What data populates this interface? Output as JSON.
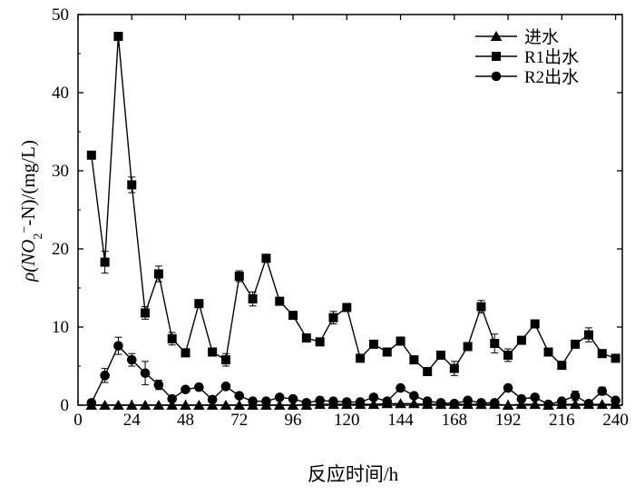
{
  "chart_data": {
    "type": "line",
    "xlabel": "反应时间/h",
    "ylabel_parts": {
      "prefix": "ρ(NO",
      "sub": "2",
      "sup": "−",
      "suffix": "-N)/(mg/L)"
    },
    "xlim": [
      0,
      243
    ],
    "ylim": [
      0,
      50
    ],
    "xticks": [
      0,
      24,
      48,
      72,
      96,
      120,
      144,
      168,
      192,
      216,
      240
    ],
    "yticks": [
      0,
      10,
      20,
      30,
      40,
      50
    ],
    "legend_position": "top-right",
    "grid": false,
    "series": [
      {
        "name": "进水",
        "marker": "triangle",
        "points": [
          [
            6,
            0
          ],
          [
            12,
            0
          ],
          [
            18,
            0
          ],
          [
            24,
            0
          ],
          [
            30,
            0
          ],
          [
            36,
            0
          ],
          [
            42,
            0
          ],
          [
            48,
            0
          ],
          [
            54,
            0
          ],
          [
            60,
            0
          ],
          [
            66,
            0
          ],
          [
            72,
            0
          ],
          [
            78,
            0
          ],
          [
            84,
            0
          ],
          [
            90,
            0
          ],
          [
            96,
            0
          ],
          [
            102,
            0
          ],
          [
            108,
            0.1
          ],
          [
            114,
            0.1
          ],
          [
            120,
            0.1
          ],
          [
            126,
            0.1
          ],
          [
            132,
            0.1
          ],
          [
            138,
            0.2
          ],
          [
            144,
            0.2
          ],
          [
            150,
            0.2
          ],
          [
            156,
            0.1
          ],
          [
            162,
            0.1
          ],
          [
            168,
            0.1
          ],
          [
            174,
            0.1
          ],
          [
            180,
            0.1
          ],
          [
            186,
            0.1
          ],
          [
            192,
            0
          ],
          [
            198,
            0.1
          ],
          [
            204,
            0.1
          ],
          [
            210,
            0
          ],
          [
            216,
            0.1
          ],
          [
            222,
            0.1
          ],
          [
            228,
            0.1
          ],
          [
            234,
            0.1
          ],
          [
            240,
            0.1
          ]
        ]
      },
      {
        "name": "R1出水",
        "marker": "square",
        "points": [
          [
            6,
            32
          ],
          [
            12,
            18.3
          ],
          [
            18,
            47.2
          ],
          [
            24,
            28.2
          ],
          [
            30,
            11.8
          ],
          [
            36,
            16.8
          ],
          [
            42,
            8.5
          ],
          [
            48,
            6.7
          ],
          [
            54,
            13
          ],
          [
            60,
            6.8
          ],
          [
            66,
            5.8
          ],
          [
            72,
            16.5
          ],
          [
            78,
            13.6
          ],
          [
            84,
            18.8
          ],
          [
            90,
            13.3
          ],
          [
            96,
            11.5
          ],
          [
            102,
            8.6
          ],
          [
            108,
            8.1
          ],
          [
            114,
            11.2
          ],
          [
            120,
            12.5
          ],
          [
            126,
            6
          ],
          [
            132,
            7.8
          ],
          [
            138,
            6.8
          ],
          [
            144,
            8.2
          ],
          [
            150,
            5.8
          ],
          [
            156,
            4.3
          ],
          [
            162,
            6.4
          ],
          [
            168,
            4.7
          ],
          [
            174,
            7.5
          ],
          [
            180,
            12.6
          ],
          [
            186,
            7.9
          ],
          [
            192,
            6.4
          ],
          [
            198,
            8.3
          ],
          [
            204,
            10.4
          ],
          [
            210,
            6.8
          ],
          [
            216,
            5.1
          ],
          [
            222,
            7.8
          ],
          [
            228,
            9
          ],
          [
            234,
            6.6
          ],
          [
            240,
            6
          ]
        ]
      },
      {
        "name": "R2出水",
        "marker": "circle",
        "points": [
          [
            6,
            0.3
          ],
          [
            12,
            3.8
          ],
          [
            18,
            7.6
          ],
          [
            24,
            5.8
          ],
          [
            30,
            4.1
          ],
          [
            36,
            2.6
          ],
          [
            42,
            0.8
          ],
          [
            48,
            2
          ],
          [
            54,
            2.3
          ],
          [
            60,
            0.7
          ],
          [
            66,
            2.4
          ],
          [
            72,
            1.2
          ],
          [
            78,
            0.5
          ],
          [
            84,
            0.5
          ],
          [
            90,
            1
          ],
          [
            96,
            0.8
          ],
          [
            102,
            0.3
          ],
          [
            108,
            0.6
          ],
          [
            114,
            0.5
          ],
          [
            120,
            0.4
          ],
          [
            126,
            0.4
          ],
          [
            132,
            1
          ],
          [
            138,
            0.5
          ],
          [
            144,
            2.2
          ],
          [
            150,
            1.2
          ],
          [
            156,
            0.5
          ],
          [
            162,
            0.3
          ],
          [
            168,
            0.2
          ],
          [
            174,
            0.6
          ],
          [
            180,
            0.3
          ],
          [
            186,
            0.3
          ],
          [
            192,
            2.2
          ],
          [
            198,
            0.8
          ],
          [
            204,
            1
          ],
          [
            210,
            0.1
          ],
          [
            216,
            0.5
          ],
          [
            222,
            1.2
          ],
          [
            228,
            0.2
          ],
          [
            234,
            1.8
          ],
          [
            240,
            0.6
          ]
        ]
      }
    ],
    "error_bars": [
      {
        "series": 1,
        "x": 12,
        "err": 1.4
      },
      {
        "series": 1,
        "x": 18,
        "err": 0.5
      },
      {
        "series": 1,
        "x": 24,
        "err": 1.0
      },
      {
        "series": 1,
        "x": 30,
        "err": 0.8
      },
      {
        "series": 1,
        "x": 36,
        "err": 1.0
      },
      {
        "series": 1,
        "x": 42,
        "err": 0.8
      },
      {
        "series": 1,
        "x": 66,
        "err": 0.8
      },
      {
        "series": 1,
        "x": 72,
        "err": 0.7
      },
      {
        "series": 1,
        "x": 78,
        "err": 0.9
      },
      {
        "series": 1,
        "x": 84,
        "err": 0.5
      },
      {
        "series": 1,
        "x": 114,
        "err": 0.8
      },
      {
        "series": 1,
        "x": 168,
        "err": 0.9
      },
      {
        "series": 1,
        "x": 180,
        "err": 0.8
      },
      {
        "series": 1,
        "x": 186,
        "err": 1.2
      },
      {
        "series": 1,
        "x": 192,
        "err": 0.8
      },
      {
        "series": 1,
        "x": 228,
        "err": 0.9
      },
      {
        "series": 2,
        "x": 12,
        "err": 0.9
      },
      {
        "series": 2,
        "x": 18,
        "err": 1.1
      },
      {
        "series": 2,
        "x": 24,
        "err": 0.8
      },
      {
        "series": 2,
        "x": 30,
        "err": 1.5
      },
      {
        "series": 2,
        "x": 36,
        "err": 0.6
      },
      {
        "series": 2,
        "x": 222,
        "err": 0.6
      },
      {
        "series": 2,
        "x": 234,
        "err": 0.5
      }
    ]
  }
}
